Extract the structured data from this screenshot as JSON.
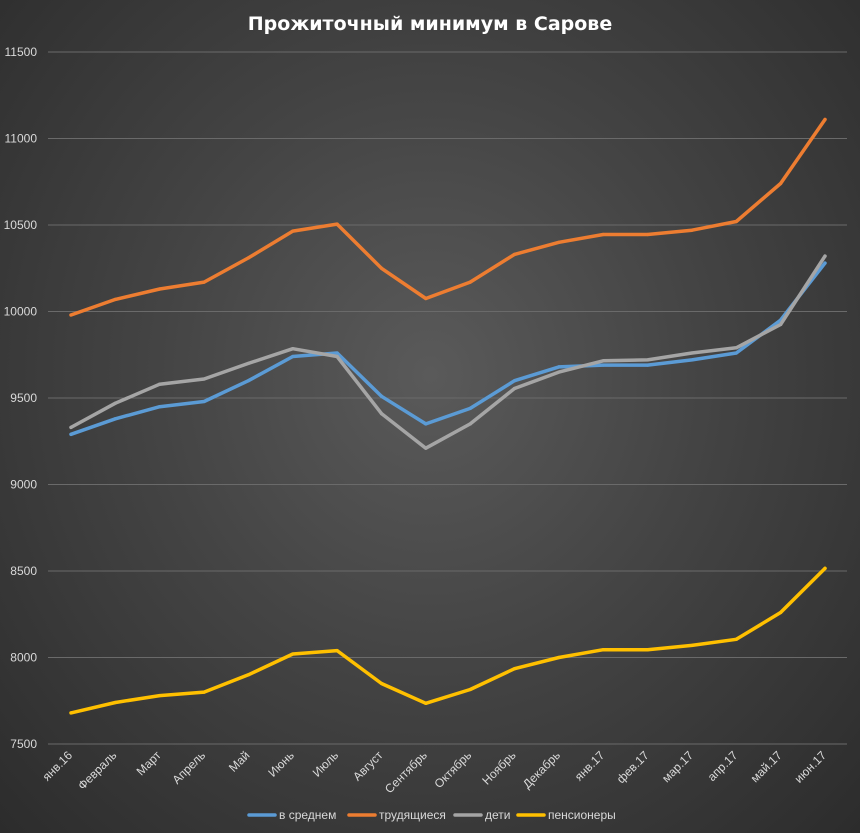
{
  "chart_data": {
    "type": "line",
    "title": "Прожиточный минимум в Сарове",
    "xlabel": "",
    "ylabel": "",
    "ylim": [
      7500,
      11500
    ],
    "yticks": [
      7500,
      8000,
      8500,
      9000,
      9500,
      10000,
      10500,
      11000,
      11500
    ],
    "grid": true,
    "legend_position": "bottom",
    "categories": [
      "янв.16",
      "Февраль",
      "Март",
      "Апрель",
      "Май",
      "Июнь",
      "Июль",
      "Август",
      "Сентябрь",
      "Октябрь",
      "Ноябрь",
      "Декабрь",
      "янв.17",
      "фев.17",
      "мар.17",
      "апр.17",
      "май.17",
      "июн.17"
    ],
    "series": [
      {
        "name": "в среднем",
        "color": "#5b9bd5",
        "values": [
          9290,
          9380,
          9450,
          9480,
          9600,
          9740,
          9760,
          9510,
          9350,
          9440,
          9600,
          9680,
          9690,
          9690,
          9720,
          9760,
          9950,
          10280
        ]
      },
      {
        "name": "трудящиеся",
        "color": "#ed7d31",
        "values": [
          9980,
          10070,
          10130,
          10170,
          10310,
          10465,
          10505,
          10250,
          10075,
          10170,
          10330,
          10400,
          10445,
          10445,
          10470,
          10520,
          10740,
          11110
        ]
      },
      {
        "name": "дети",
        "color": "#a5a5a5",
        "values": [
          9330,
          9470,
          9580,
          9610,
          9700,
          9785,
          9740,
          9410,
          9210,
          9350,
          9555,
          9650,
          9715,
          9720,
          9760,
          9790,
          9925,
          10320
        ]
      },
      {
        "name": "пенсионеры",
        "color": "#ffc000",
        "values": [
          7680,
          7740,
          7780,
          7800,
          7900,
          8020,
          8040,
          7850,
          7735,
          7815,
          7935,
          8000,
          8045,
          8045,
          8070,
          8105,
          8260,
          8515
        ]
      }
    ]
  }
}
